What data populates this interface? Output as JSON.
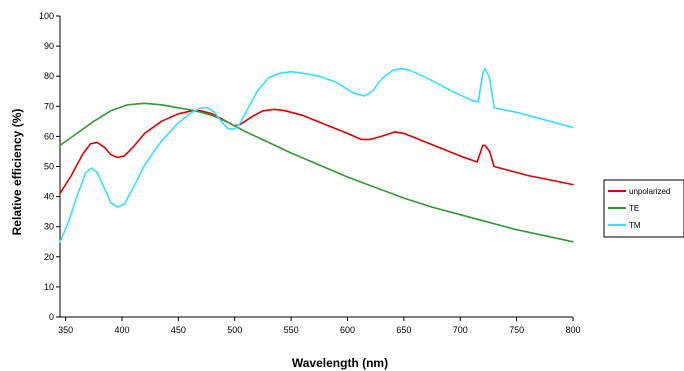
{
  "chart_data": {
    "type": "line",
    "xlabel": "Wavelength (nm)",
    "ylabel": "Relative efficiency (%)",
    "xlim": [
      345,
      800
    ],
    "ylim": [
      0,
      100
    ],
    "xticks": [
      350,
      400,
      450,
      500,
      550,
      600,
      650,
      700,
      750,
      800
    ],
    "yticks": [
      0,
      10,
      20,
      30,
      40,
      50,
      60,
      70,
      80,
      90,
      100
    ],
    "grid": false,
    "legend": "right",
    "series": [
      {
        "name": "unpolarized",
        "color": "#e00000",
        "x": [
          345,
          355,
          365,
          372,
          378,
          384,
          390,
          396,
          402,
          410,
          420,
          435,
          450,
          462,
          470,
          480,
          490,
          500,
          505,
          515,
          525,
          535,
          545,
          560,
          580,
          600,
          612,
          620,
          630,
          642,
          650,
          660,
          680,
          700,
          715,
          720,
          722,
          726,
          730,
          740,
          760,
          780,
          800
        ],
        "y": [
          41,
          47,
          54,
          57.5,
          58,
          56.5,
          54,
          53,
          53.5,
          56.5,
          61,
          65,
          67.5,
          68.5,
          68.5,
          67.5,
          65.5,
          63.5,
          64,
          66.5,
          68.5,
          69,
          68.5,
          67,
          64,
          61,
          59,
          59,
          60,
          61.5,
          61,
          59.5,
          56.5,
          53.5,
          51.5,
          57,
          57,
          55,
          50,
          49,
          47,
          45.5,
          44
        ]
      },
      {
        "name": "TE",
        "color": "#339933",
        "x": [
          345,
          360,
          375,
          390,
          405,
          420,
          435,
          450,
          465,
          480,
          495,
          510,
          530,
          550,
          575,
          600,
          625,
          650,
          675,
          700,
          715,
          725,
          750,
          775,
          800
        ],
        "y": [
          57,
          61,
          65,
          68.5,
          70.5,
          71,
          70.5,
          69.5,
          68.5,
          67,
          64.5,
          61.5,
          58,
          54.5,
          50.5,
          46.5,
          43,
          39.5,
          36.5,
          34,
          32.5,
          31.5,
          29,
          27,
          25
        ]
      },
      {
        "name": "TM",
        "color": "#33e0ff",
        "x": [
          345,
          352,
          360,
          368,
          373,
          378,
          383,
          390,
          396,
          402,
          410,
          420,
          435,
          450,
          462,
          470,
          476,
          482,
          488,
          494,
          500,
          505,
          512,
          520,
          530,
          540,
          550,
          560,
          575,
          590,
          605,
          615,
          622,
          630,
          640,
          648,
          655,
          670,
          690,
          710,
          716,
          720,
          722,
          726,
          730,
          750,
          770,
          790,
          800
        ],
        "y": [
          25,
          31,
          40,
          48,
          49.5,
          48,
          44,
          38,
          36.5,
          37.5,
          43,
          50.5,
          58.5,
          64.5,
          68,
          69.5,
          69.5,
          68,
          65,
          62.5,
          62.5,
          64.5,
          69.5,
          75,
          79.5,
          81,
          81.5,
          81,
          80,
          78,
          74.5,
          73.5,
          75,
          79,
          82,
          82.5,
          82,
          79.5,
          75.5,
          72,
          71.5,
          81,
          82.5,
          79.5,
          69.5,
          68,
          66,
          64,
          63
        ]
      }
    ]
  }
}
